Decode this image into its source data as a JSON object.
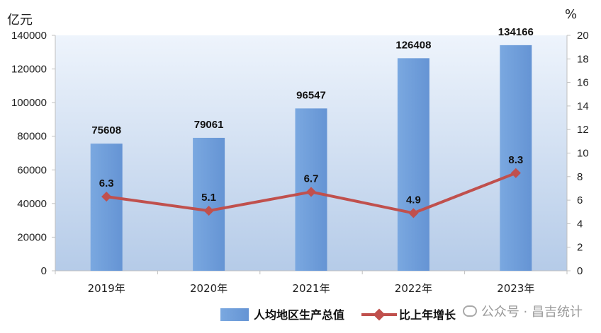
{
  "chart_data": {
    "type": "bar",
    "categories": [
      "2019年",
      "2020年",
      "2021年",
      "2022年",
      "2023年"
    ],
    "series": [
      {
        "name": "人均地区生产总值",
        "type": "bar",
        "axis": "left",
        "values": [
          75608,
          79061,
          96547,
          126408,
          134166
        ],
        "color": "#6f9fdb"
      },
      {
        "name": "比上年增长",
        "type": "line",
        "axis": "right",
        "values": [
          6.3,
          5.1,
          6.7,
          4.9,
          8.3
        ],
        "color": "#c0504d"
      }
    ],
    "y_left": {
      "unit": "亿元",
      "range": [
        0,
        140000
      ],
      "ticks": [
        "0",
        "20000",
        "40000",
        "60000",
        "80000",
        "100000",
        "120000",
        "140000"
      ]
    },
    "y_right": {
      "unit": "%",
      "range": [
        0,
        20
      ],
      "ticks": [
        "0",
        "2",
        "4",
        "6",
        "8",
        "10",
        "12",
        "14",
        "16",
        "18",
        "20"
      ]
    },
    "legend_position": "bottom",
    "grid": false
  },
  "watermark": "公众号 · 昌吉统计"
}
